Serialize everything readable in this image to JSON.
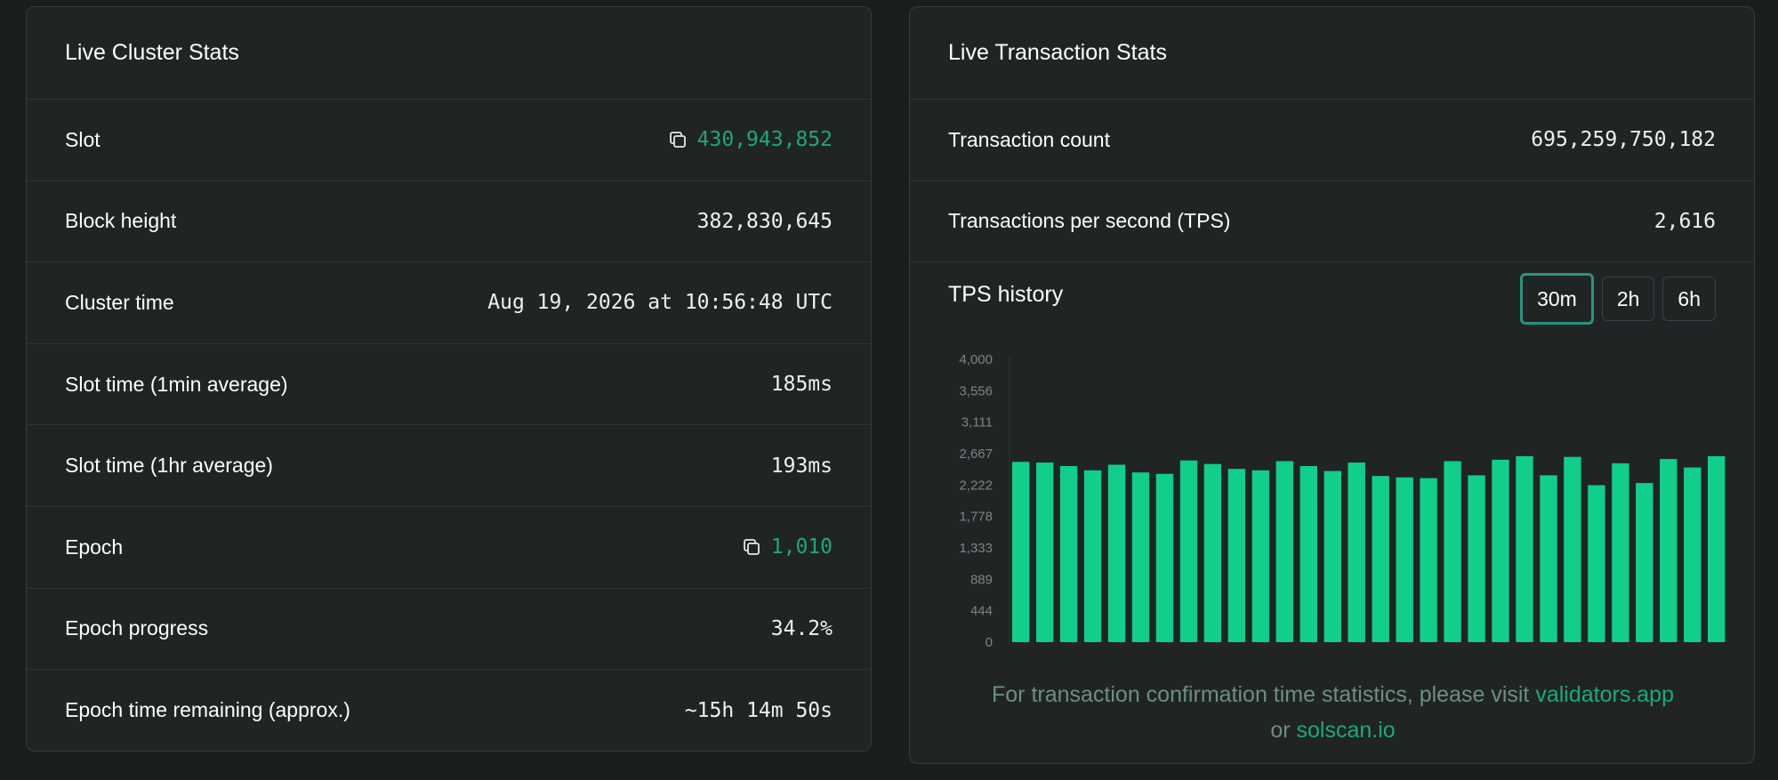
{
  "cluster": {
    "title": "Live Cluster Stats",
    "rows": [
      {
        "label": "Slot",
        "value": "430,943,852"
      },
      {
        "label": "Block height",
        "value": "382,830,645"
      },
      {
        "label": "Cluster time",
        "value": "Aug 19, 2026 at 10:56:48 UTC"
      },
      {
        "label": "Slot time (1min average)",
        "value": "185ms"
      },
      {
        "label": "Slot time (1hr average)",
        "value": "193ms"
      },
      {
        "label": "Epoch",
        "value": "1,010"
      },
      {
        "label": "Epoch progress",
        "value": "34.2%"
      },
      {
        "label": "Epoch time remaining (approx.)",
        "value": "~15h 14m 50s"
      }
    ]
  },
  "transactions": {
    "title": "Live Transaction Stats",
    "rows": [
      {
        "label": "Transaction count",
        "value": "695,259,750,182"
      },
      {
        "label": "Transactions per second (TPS)",
        "value": "2,616"
      }
    ],
    "tps_history_title": "TPS history",
    "ranges": [
      "30m",
      "2h",
      "6h"
    ],
    "active_range": "30m",
    "footnote": {
      "text_before": "For transaction confirmation time statistics, please visit ",
      "link1": "validators.app",
      "text_middle": " or ",
      "link2": "solscan.io"
    }
  },
  "colors": {
    "accent": "#1ea87a",
    "bar": "#0fcf8a",
    "card_bg": "#202425",
    "page_bg": "#1a1e1e"
  },
  "icons": {
    "copy": "copy-icon"
  },
  "chart_data": {
    "type": "bar",
    "title": "TPS history",
    "ylim": [
      0,
      4000
    ],
    "y_ticks": [
      0,
      444,
      889,
      1333,
      1778,
      2222,
      2667,
      3111,
      3556,
      4000
    ],
    "y_tick_labels": [
      "0",
      "444",
      "889",
      "1,333",
      "1,778",
      "2,222",
      "2,667",
      "3,111",
      "3,556",
      "4,000"
    ],
    "grid": false,
    "values": [
      2550,
      2540,
      2490,
      2430,
      2510,
      2400,
      2380,
      2570,
      2520,
      2450,
      2430,
      2560,
      2490,
      2420,
      2540,
      2350,
      2330,
      2320,
      2560,
      2360,
      2580,
      2630,
      2360,
      2620,
      2220,
      2530,
      2250,
      2590,
      2470,
      2630
    ]
  }
}
